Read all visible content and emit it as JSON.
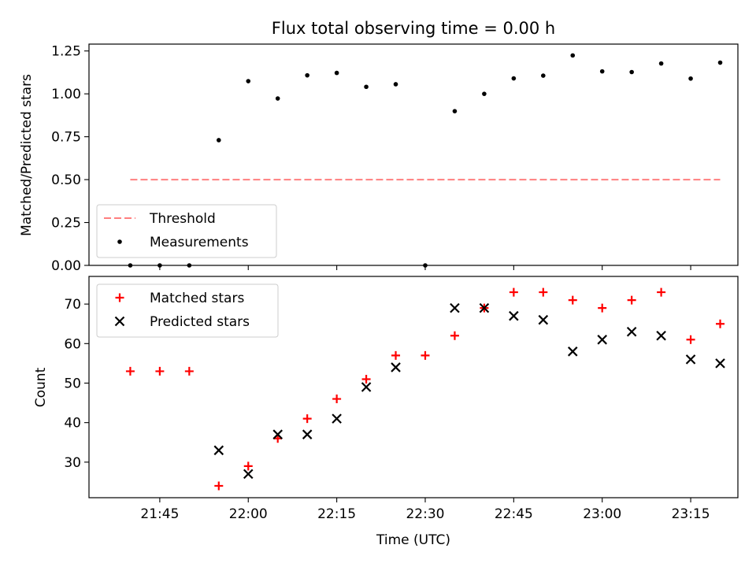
{
  "title": "Flux total observing time = 0.00 h",
  "chart_data": [
    {
      "type": "scatter",
      "ylabel": "Matched/Predicted stars",
      "xlabel": "",
      "x_range": [
        "21:33",
        "23:23"
      ],
      "ylim": [
        0.0,
        1.29
      ],
      "y_ticks": [
        "0.00",
        "0.25",
        "0.50",
        "0.75",
        "1.00",
        "1.25"
      ],
      "x_ticks": [
        "21:45",
        "22:00",
        "22:15",
        "22:30",
        "22:45",
        "23:00",
        "23:15"
      ],
      "show_x_tick_labels": false,
      "grid": false,
      "legend_position": "lower-left",
      "series": [
        {
          "name": "Threshold",
          "kind": "dashed-line",
          "color": "#ff7f7f",
          "x": [
            "21:40",
            "23:20"
          ],
          "values": [
            0.5,
            0.5
          ]
        },
        {
          "name": "Measurements",
          "kind": "dot",
          "color": "#000000",
          "x": [
            "21:40",
            "21:45",
            "21:50",
            "21:55",
            "22:00",
            "22:05",
            "22:10",
            "22:15",
            "22:20",
            "22:25",
            "22:30",
            "22:35",
            "22:40",
            "22:45",
            "22:50",
            "22:55",
            "23:00",
            "23:05",
            "23:10",
            "23:15",
            "23:20"
          ],
          "values": [
            0.0,
            0.0,
            0.0,
            0.73,
            1.074,
            0.973,
            1.108,
            1.122,
            1.041,
            1.056,
            0.0,
            0.899,
            1.0,
            1.09,
            1.106,
            1.224,
            1.131,
            1.127,
            1.177,
            1.089,
            1.182
          ]
        }
      ]
    },
    {
      "type": "scatter",
      "ylabel": "Count",
      "xlabel": "Time (UTC)",
      "x_range": [
        "21:33",
        "23:23"
      ],
      "ylim": [
        21,
        77
      ],
      "y_ticks": [
        "30",
        "40",
        "50",
        "60",
        "70"
      ],
      "x_ticks": [
        "21:45",
        "22:00",
        "22:15",
        "22:30",
        "22:45",
        "23:00",
        "23:15"
      ],
      "show_x_tick_labels": true,
      "grid": false,
      "legend_position": "upper-left",
      "series": [
        {
          "name": "Matched stars",
          "kind": "plus",
          "color": "#ff0000",
          "x": [
            "21:40",
            "21:45",
            "21:50",
            "21:55",
            "22:00",
            "22:05",
            "22:10",
            "22:15",
            "22:20",
            "22:25",
            "22:30",
            "22:35",
            "22:40",
            "22:45",
            "22:50",
            "22:55",
            "23:00",
            "23:05",
            "23:10",
            "23:15",
            "23:20"
          ],
          "values": [
            53,
            53,
            53,
            24,
            29,
            36,
            41,
            46,
            51,
            57,
            57,
            62,
            69,
            73,
            73,
            71,
            69,
            71,
            73,
            61,
            65
          ]
        },
        {
          "name": "Predicted stars",
          "kind": "x",
          "color": "#000000",
          "x": [
            "21:55",
            "22:00",
            "22:05",
            "22:10",
            "22:15",
            "22:20",
            "22:25",
            "22:35",
            "22:40",
            "22:45",
            "22:50",
            "22:55",
            "23:00",
            "23:05",
            "23:10",
            "23:15",
            "23:20"
          ],
          "values": [
            33,
            27,
            37,
            37,
            41,
            49,
            54,
            69,
            69,
            67,
            66,
            58,
            61,
            63,
            62,
            56,
            55
          ]
        }
      ]
    }
  ]
}
